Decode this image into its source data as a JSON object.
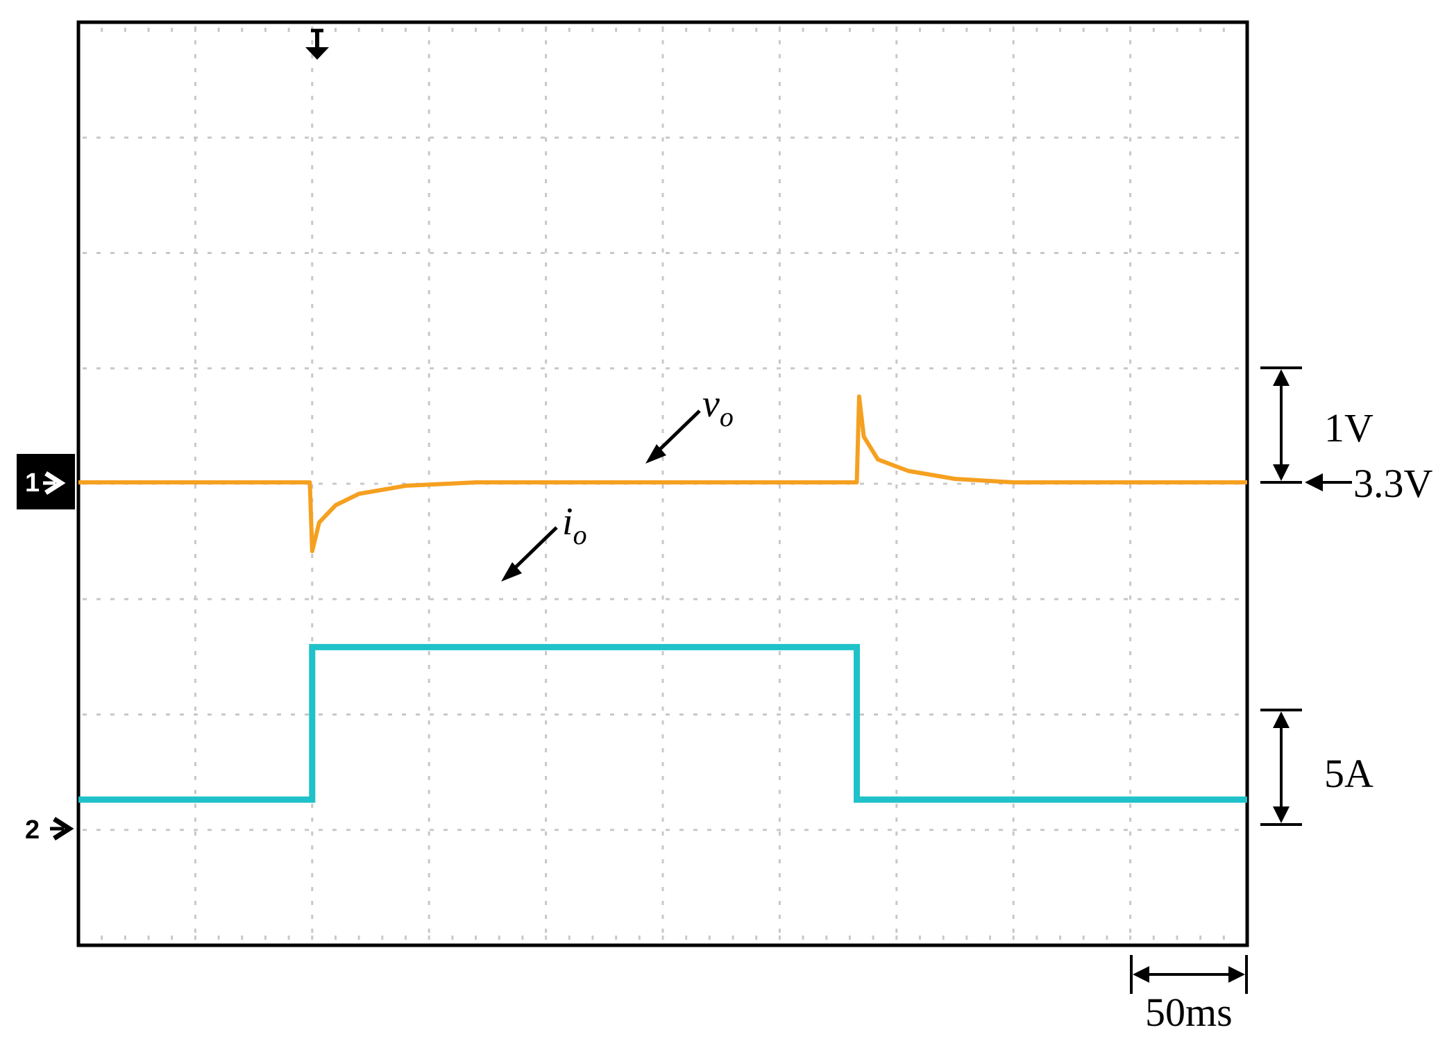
{
  "chart_data": {
    "type": "line",
    "title": "",
    "xlabel": "",
    "ylabel": "",
    "grid": true,
    "x_units": "ms",
    "x_range": [
      0,
      500
    ],
    "time_per_div": "50ms",
    "series": [
      {
        "name": "v_o",
        "label_main": "v",
        "label_sub": "o",
        "color": "#f5a020",
        "channel_marker": "1",
        "baseline": "3.3V",
        "scale_label": "1V",
        "points": [
          [
            0,
            3.3
          ],
          [
            99,
            3.3
          ],
          [
            100,
            2.7
          ],
          [
            103,
            2.95
          ],
          [
            110,
            3.1
          ],
          [
            120,
            3.2
          ],
          [
            140,
            3.27
          ],
          [
            170,
            3.3
          ],
          [
            333,
            3.3
          ],
          [
            334,
            4.05
          ],
          [
            336,
            3.7
          ],
          [
            342,
            3.5
          ],
          [
            355,
            3.4
          ],
          [
            375,
            3.33
          ],
          [
            400,
            3.3
          ],
          [
            500,
            3.3
          ]
        ]
      },
      {
        "name": "i_o",
        "label_main": "i",
        "label_sub": "o",
        "color": "#1ec2c8",
        "channel_marker": "2",
        "scale_label": "5A",
        "points": [
          [
            0,
            1.6
          ],
          [
            100,
            1.6
          ],
          [
            100,
            9.8
          ],
          [
            333,
            9.8
          ],
          [
            333,
            1.6
          ],
          [
            500,
            1.6
          ]
        ]
      }
    ],
    "annotations": {
      "voltage_baseline": "3.3V",
      "voltage_scale": "1V",
      "current_scale": "5A",
      "time_scale": "50ms",
      "trigger_marker": "down-arrow"
    }
  }
}
